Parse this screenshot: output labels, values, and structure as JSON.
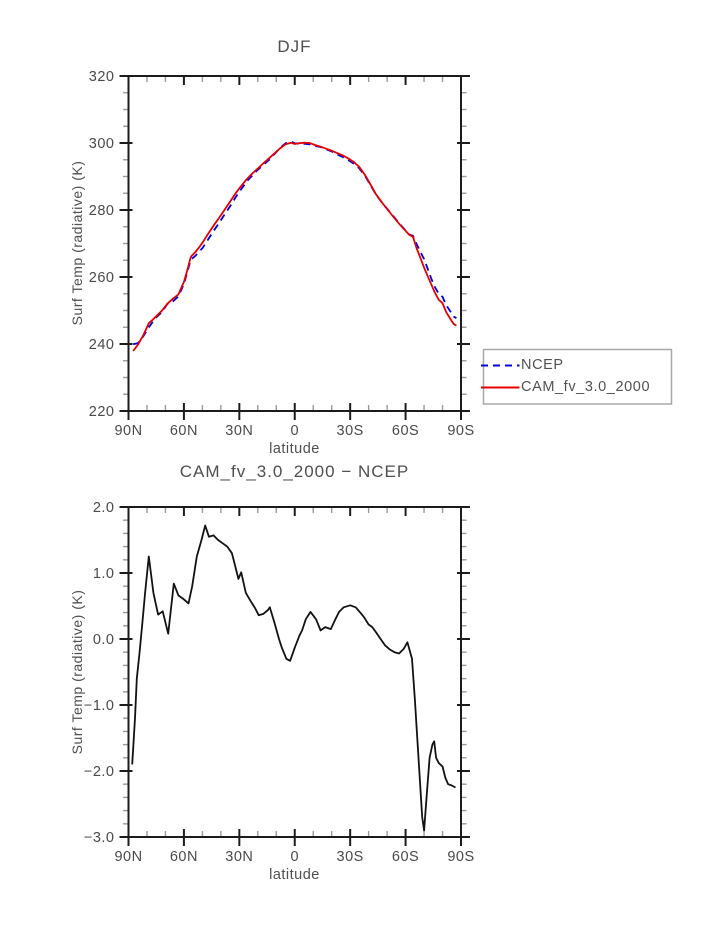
{
  "figure": {
    "background": "#ffffff",
    "axis_color": "#1c1c1c",
    "minor_tick_color": "#9a9a9a",
    "text_color": "#4a4a4a"
  },
  "chart_data": [
    {
      "id": "top-chart",
      "type": "line",
      "title": "DJF",
      "xlabel": "latitude",
      "ylabel": "Surf Temp (radiative) (K)",
      "xlim": [
        90,
        -90
      ],
      "ylim": [
        220,
        320
      ],
      "x_minor_step": 10,
      "y_minor_step": 5,
      "grid": false,
      "legend_position": "outside-right",
      "xticks": [
        {
          "v": 90,
          "label": "90N"
        },
        {
          "v": 60,
          "label": "60N"
        },
        {
          "v": 30,
          "label": "30N"
        },
        {
          "v": 0,
          "label": "0"
        },
        {
          "v": -30,
          "label": "30S"
        },
        {
          "v": -60,
          "label": "60S"
        },
        {
          "v": -90,
          "label": "90S"
        }
      ],
      "yticks": [
        {
          "v": 220,
          "label": "220"
        },
        {
          "v": 240,
          "label": "240"
        },
        {
          "v": 260,
          "label": "260"
        },
        {
          "v": 280,
          "label": "280"
        },
        {
          "v": 300,
          "label": "300"
        },
        {
          "v": 320,
          "label": "320"
        }
      ],
      "series": [
        {
          "name": "NCEP",
          "color": "#0000e0",
          "style": "dashed",
          "x": [
            87.5,
            85,
            82,
            79,
            77,
            75,
            72,
            69,
            66,
            63,
            60,
            58,
            56.5,
            56,
            54,
            52,
            50,
            47,
            44,
            41,
            38,
            35,
            32,
            29,
            26,
            23,
            20,
            17,
            14,
            11,
            8,
            5,
            2,
            0,
            -2,
            -5,
            -8,
            -11,
            -14,
            -17,
            -20,
            -23,
            -26,
            -29,
            -32,
            -35,
            -38,
            -41,
            -44,
            -47,
            -50,
            -53,
            -56,
            -59,
            -62,
            -64,
            -66,
            -68,
            -70,
            -72,
            -74,
            -76,
            -78,
            -80,
            -82,
            -84,
            -86,
            -87.5
          ],
          "y": [
            239.9,
            240.2,
            242.3,
            245.0,
            246.5,
            247.9,
            249.5,
            251.9,
            252.7,
            254.2,
            257.9,
            261.8,
            264.8,
            265.3,
            266.2,
            267.4,
            268.6,
            271.1,
            273.7,
            276.1,
            278.7,
            281.1,
            283.8,
            286.2,
            288.5,
            290.3,
            292.0,
            293.5,
            294.9,
            296.7,
            298.5,
            299.9,
            300.4,
            299.9,
            299.8,
            299.8,
            299.6,
            299.1,
            298.8,
            298.1,
            297.5,
            296.6,
            295.8,
            294.9,
            293.8,
            292.4,
            290.2,
            287.4,
            284.6,
            282.4,
            280.4,
            278.4,
            276.4,
            274.5,
            272.7,
            272.3,
            269.8,
            267.5,
            265.3,
            262.4,
            259.4,
            256.9,
            255.0,
            254.1,
            251.6,
            249.9,
            248.2,
            247.7
          ]
        },
        {
          "name": "CAM_fv_3.0_2000",
          "color": "#e60000",
          "style": "solid",
          "x": [
            87.5,
            85,
            82,
            79,
            77,
            75,
            72,
            69,
            66,
            63,
            60,
            58,
            56.5,
            56,
            54,
            52,
            50,
            47,
            44,
            41,
            38,
            35,
            32,
            29,
            26,
            23,
            20,
            17,
            14,
            11,
            8,
            5,
            2,
            0,
            -2,
            -5,
            -8,
            -11,
            -14,
            -17,
            -20,
            -23,
            -26,
            -29,
            -32,
            -35,
            -38,
            -41,
            -44,
            -47,
            -50,
            -53,
            -56,
            -59,
            -62,
            -64,
            -66,
            -68,
            -70,
            -72,
            -74,
            -76,
            -78,
            -80,
            -82,
            -84,
            -86,
            -87.5
          ],
          "y": [
            237.9,
            239.7,
            242.6,
            246.2,
            247.2,
            248.3,
            249.9,
            252.0,
            253.5,
            254.8,
            258.5,
            262.3,
            265.6,
            266.2,
            267.3,
            268.7,
            270.2,
            272.8,
            275.3,
            277.6,
            280.1,
            282.5,
            285.0,
            287.2,
            289.2,
            290.9,
            292.4,
            293.9,
            295.4,
            296.9,
            298.4,
            299.6,
            300.1,
            299.7,
            299.9,
            300.1,
            300.0,
            299.4,
            298.9,
            298.3,
            297.7,
            297.0,
            296.3,
            295.4,
            294.3,
            292.8,
            290.5,
            287.6,
            284.7,
            282.4,
            280.3,
            278.2,
            276.2,
            274.4,
            272.6,
            272.0,
            268.5,
            265.7,
            262.8,
            260.2,
            257.7,
            255.2,
            253.2,
            252.2,
            249.5,
            247.7,
            246.0,
            245.5
          ]
        }
      ]
    },
    {
      "id": "diff-chart",
      "type": "line",
      "title": "CAM_fv_3.0_2000 − NCEP",
      "xlabel": "latitude",
      "ylabel": "Surf Temp (radiative) (K)",
      "xlim": [
        90,
        -90
      ],
      "ylim": [
        -3.0,
        2.0
      ],
      "x_minor_step": 10,
      "y_minor_step": 0.2,
      "grid": false,
      "xticks": [
        {
          "v": 90,
          "label": "90N"
        },
        {
          "v": 60,
          "label": "60N"
        },
        {
          "v": 30,
          "label": "30N"
        },
        {
          "v": 0,
          "label": "0"
        },
        {
          "v": -30,
          "label": "30S"
        },
        {
          "v": -60,
          "label": "60S"
        },
        {
          "v": -90,
          "label": "90S"
        }
      ],
      "yticks": [
        {
          "v": -3,
          "label": "−3.0"
        },
        {
          "v": -2,
          "label": "−2.0"
        },
        {
          "v": -1,
          "label": "−1.0"
        },
        {
          "v": 0,
          "label": "0.0"
        },
        {
          "v": 1,
          "label": "1.0"
        },
        {
          "v": 2,
          "label": "2.0"
        }
      ],
      "series": [
        {
          "name": "CAM_fv_3.0_2000 − NCEP",
          "color": "#121212",
          "style": "solid",
          "x": [
            88,
            86.5,
            85.5,
            84,
            82.5,
            81,
            79,
            76.5,
            74,
            71.5,
            68.5,
            65.5,
            63,
            60,
            57.5,
            55.5,
            53,
            50.5,
            48.5,
            46.5,
            44,
            41.5,
            39,
            36.5,
            34,
            33,
            30.5,
            29,
            26.5,
            24,
            21.5,
            19.5,
            17,
            14.5,
            13.5,
            11,
            8.5,
            7,
            4.5,
            2.5,
            0,
            -2.5,
            -4,
            -6,
            -8.5,
            -11.5,
            -14,
            -16.5,
            -19.5,
            -22,
            -24,
            -26.5,
            -30,
            -33,
            -35.5,
            -37.5,
            -40,
            -42,
            -44.5,
            -46.5,
            -49,
            -51.5,
            -54,
            -56.5,
            -59,
            -61,
            -63.5,
            -65,
            -67,
            -69,
            -70,
            -71.5,
            -73,
            -74.5,
            -75.5,
            -76.5,
            -78,
            -80,
            -81.5,
            -83,
            -85,
            -87
          ],
          "y": [
            -1.9,
            -1.2,
            -0.6,
            -0.2,
            0.25,
            0.7,
            1.25,
            0.7,
            0.37,
            0.42,
            0.08,
            0.84,
            0.66,
            0.6,
            0.54,
            0.8,
            1.25,
            1.5,
            1.72,
            1.55,
            1.57,
            1.5,
            1.45,
            1.4,
            1.3,
            1.19,
            0.91,
            1.01,
            0.7,
            0.58,
            0.47,
            0.36,
            0.38,
            0.44,
            0.48,
            0.25,
            0.0,
            -0.13,
            -0.3,
            -0.33,
            -0.13,
            0.05,
            0.13,
            0.3,
            0.41,
            0.3,
            0.13,
            0.18,
            0.15,
            0.3,
            0.41,
            0.48,
            0.51,
            0.48,
            0.4,
            0.33,
            0.22,
            0.18,
            0.08,
            0.0,
            -0.1,
            -0.16,
            -0.2,
            -0.22,
            -0.15,
            -0.05,
            -0.3,
            -0.9,
            -1.8,
            -2.7,
            -2.9,
            -2.35,
            -1.8,
            -1.6,
            -1.55,
            -1.8,
            -1.88,
            -1.93,
            -2.1,
            -2.2,
            -2.22,
            -2.25
          ]
        }
      ]
    }
  ]
}
